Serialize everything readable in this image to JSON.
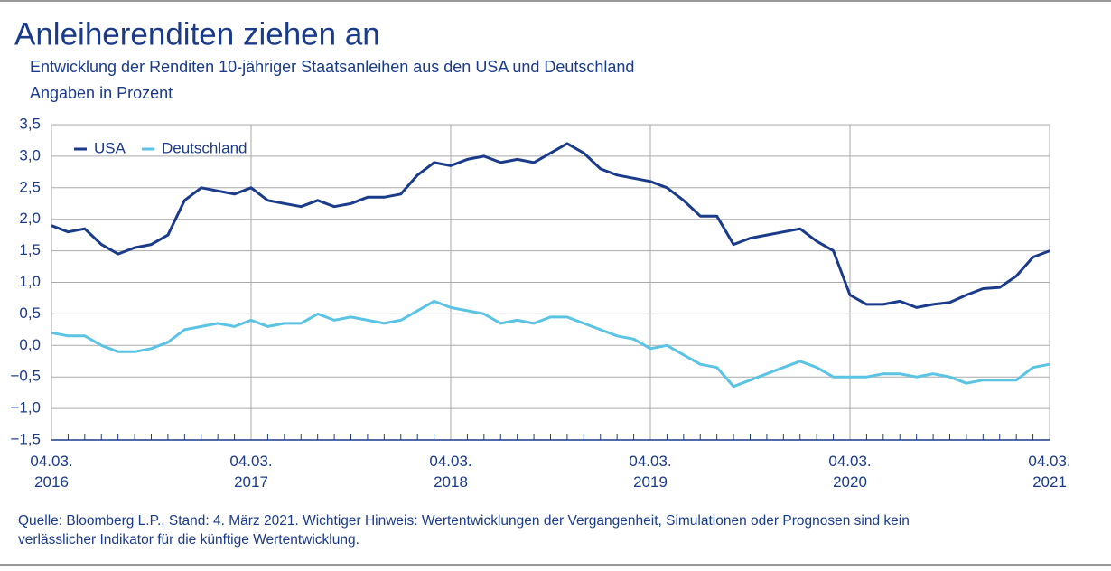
{
  "chart_data": {
    "type": "line",
    "title": "Anleiherenditen ziehen an",
    "subtitle": "Entwicklung der Renditen 10-jähriger Staatsanleihen aus den USA und Deutschland",
    "y_label": "Angaben in Prozent",
    "source": [
      "Quelle: Bloomberg L.P., Stand: 4. März 2021. Wichtiger Hinweis: Wertentwicklungen der Vergangenheit, Simulationen oder Prognosen sind kein",
      "verlässlicher Indikator für die künftige Wertentwicklung."
    ],
    "categories": [
      "04.03.\n2016",
      null,
      null,
      null,
      null,
      null,
      null,
      null,
      null,
      null,
      null,
      null,
      "04.03.\n2017",
      null,
      null,
      null,
      null,
      null,
      null,
      null,
      null,
      null,
      null,
      null,
      "04.03.\n2018",
      null,
      null,
      null,
      null,
      null,
      null,
      null,
      null,
      null,
      null,
      null,
      "04.03.\n2019",
      null,
      null,
      null,
      null,
      null,
      null,
      null,
      null,
      null,
      null,
      null,
      "04.03.\n2020",
      null,
      null,
      null,
      null,
      null,
      null,
      null,
      null,
      null,
      null,
      null,
      "04.03.\n2021"
    ],
    "series": [
      {
        "name": "USA",
        "color": "#1a3a8a",
        "values": [
          1.9,
          1.8,
          1.85,
          1.6,
          1.45,
          1.55,
          1.6,
          1.75,
          2.3,
          2.5,
          2.45,
          2.4,
          2.5,
          2.3,
          2.25,
          2.2,
          2.3,
          2.2,
          2.25,
          2.35,
          2.35,
          2.4,
          2.7,
          2.9,
          2.85,
          2.95,
          3.0,
          2.9,
          2.95,
          2.9,
          3.05,
          3.2,
          3.05,
          2.8,
          2.7,
          2.65,
          2.6,
          2.5,
          2.3,
          2.05,
          2.05,
          1.6,
          1.7,
          1.75,
          1.8,
          1.85,
          1.65,
          1.5,
          0.8,
          0.65,
          0.65,
          0.7,
          0.6,
          0.65,
          0.68,
          0.8,
          0.9,
          0.92,
          1.1,
          1.4,
          1.5
        ]
      },
      {
        "name": "Deutschland",
        "color": "#5bc3e3",
        "values": [
          0.2,
          0.15,
          0.15,
          0.0,
          -0.1,
          -0.1,
          -0.05,
          0.05,
          0.25,
          0.3,
          0.35,
          0.3,
          0.4,
          0.3,
          0.35,
          0.35,
          0.5,
          0.4,
          0.45,
          0.4,
          0.35,
          0.4,
          0.55,
          0.7,
          0.6,
          0.55,
          0.5,
          0.35,
          0.4,
          0.35,
          0.45,
          0.45,
          0.35,
          0.25,
          0.15,
          0.1,
          -0.05,
          0.0,
          -0.15,
          -0.3,
          -0.35,
          -0.65,
          -0.55,
          -0.45,
          -0.35,
          -0.25,
          -0.35,
          -0.5,
          -0.5,
          -0.5,
          -0.45,
          -0.45,
          -0.5,
          -0.45,
          -0.5,
          -0.6,
          -0.55,
          -0.55,
          -0.55,
          -0.35,
          -0.3
        ]
      }
    ],
    "ylim": [
      -1.5,
      3.5
    ],
    "yticks": [
      {
        "value": -1.5,
        "label": "−1,5"
      },
      {
        "value": -1.0,
        "label": "−1,0"
      },
      {
        "value": -0.5,
        "label": "−0,5"
      },
      {
        "value": 0,
        "label": "0,0"
      },
      {
        "value": 0.5,
        "label": "0,5"
      },
      {
        "value": 1.0,
        "label": "1,0"
      },
      {
        "value": 1.5,
        "label": "1,5"
      },
      {
        "value": 2.0,
        "label": "2,0"
      },
      {
        "value": 2.5,
        "label": "2,5"
      },
      {
        "value": 3.0,
        "label": "3,0"
      },
      {
        "value": 3.5,
        "label": "3,5"
      }
    ],
    "grid": true,
    "legend": "upper left"
  }
}
